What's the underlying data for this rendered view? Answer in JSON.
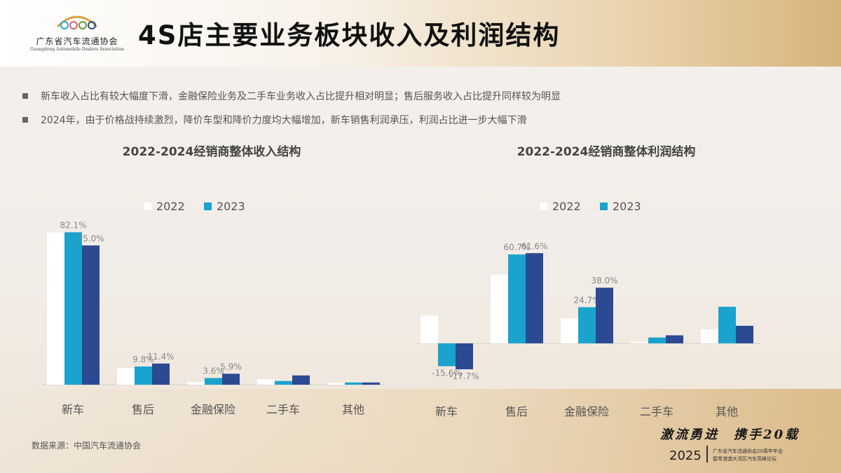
{
  "header": {
    "title": "4S店主要业务板块收入及利润结构",
    "logo_cn": "广东省汽车流通协会",
    "logo_en": "Guangdong Automobile Dealers Association"
  },
  "bullets": [
    "新车收入占比有较大幅度下滑，金融保险业务及二手车业务收入占比提升相对明显；售后服务收入占比提升同样较为明显",
    "2024年，由于价格战持续激烈，降价车型和降价力度均大幅增加，新车销售利润承压，利润占比进一步大幅下滑"
  ],
  "footer": {
    "source": "数据来源：中国汽车流通协会",
    "slogan": "激流勇进　携手20载",
    "year": "2025",
    "event_line1": "广东省汽车流通协会20周年年会",
    "event_line2": "暨粤港澳大湾区汽车高峰论坛"
  },
  "colors": {
    "2022": "#ffffff",
    "2023": "#1aa3cc",
    "2024": "#2b4a92"
  },
  "chart_data": [
    {
      "type": "bar",
      "title": "2022-2024经销商整体收入结构",
      "categories": [
        "新车",
        "售后",
        "金融保险",
        "二手车",
        "其他"
      ],
      "legend": [
        "2022",
        "2023"
      ],
      "series": [
        {
          "name": "2022",
          "values": [
            82.0,
            9.0,
            1.5,
            3.0,
            1.0
          ]
        },
        {
          "name": "2023",
          "values": [
            82.1,
            9.8,
            3.6,
            2.0,
            1.2
          ]
        },
        {
          "name": "",
          "values": [
            75.0,
            11.4,
            5.9,
            5.0,
            1.2
          ]
        }
      ],
      "value_labels": [
        [
          "",
          "",
          "",
          "",
          ""
        ],
        [
          "82.1%",
          "9.8%",
          "3.6%",
          "",
          ""
        ],
        [
          "75.0%",
          "11.4%",
          "5.9%",
          "",
          ""
        ]
      ],
      "ylim": [
        0,
        85
      ]
    },
    {
      "type": "bar",
      "title": "2022-2024经销商整体利润结构",
      "categories": [
        "新车",
        "售后",
        "金融保险",
        "二手车",
        "其他"
      ],
      "legend": [
        "2022",
        "2023"
      ],
      "series": [
        {
          "name": "2022",
          "values": [
            19.0,
            47.0,
            17.0,
            1.0,
            9.5
          ]
        },
        {
          "name": "2023",
          "values": [
            -15.6,
            60.7,
            24.7,
            4.0,
            25.0
          ]
        },
        {
          "name": "",
          "values": [
            -17.7,
            61.6,
            38.0,
            5.5,
            12.0
          ]
        }
      ],
      "value_labels": [
        [
          "",
          "",
          "",
          "",
          ""
        ],
        [
          "-15.6%",
          "60.7%",
          "24.7%",
          "",
          ""
        ],
        [
          "-17.7%",
          "61.6%",
          "38.0%",
          "",
          ""
        ]
      ],
      "ylim": [
        -20,
        65
      ]
    }
  ]
}
